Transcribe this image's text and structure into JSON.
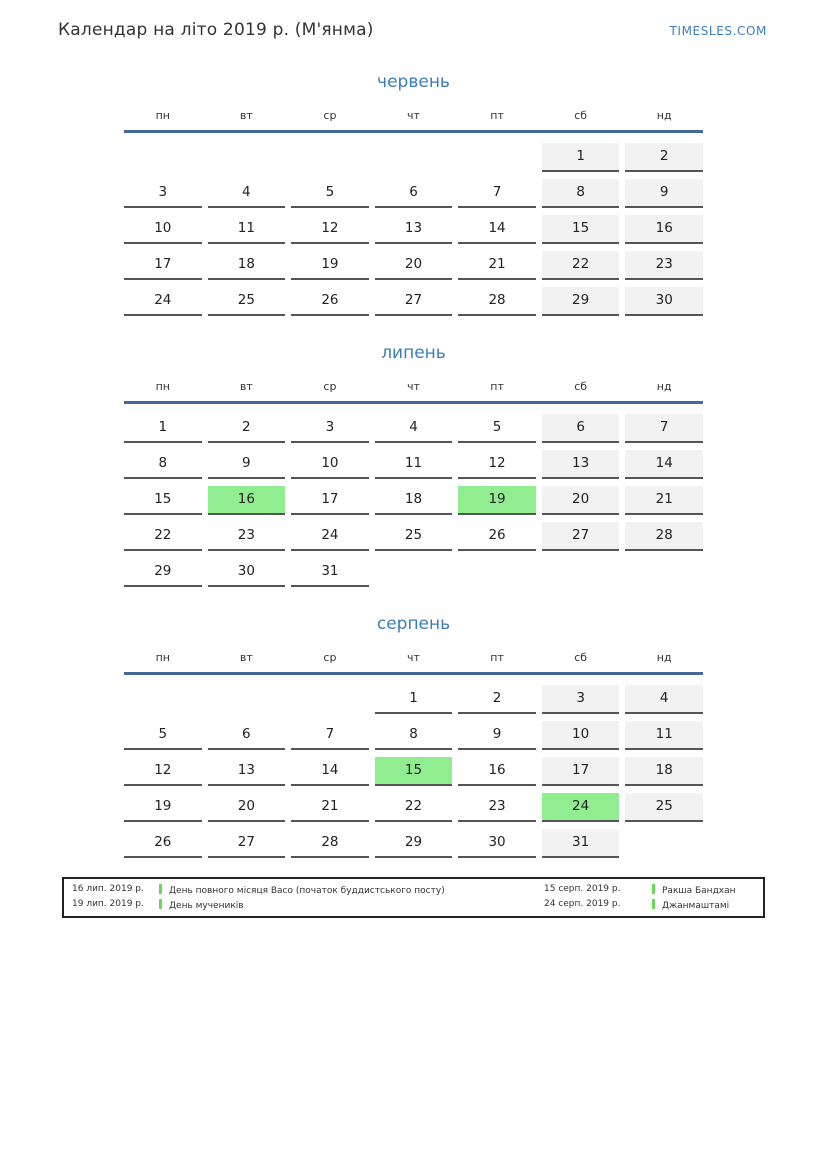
{
  "page": {
    "title": "Календар на літо 2019 р. (М'янма)",
    "site": "TIMESLES.COM"
  },
  "weekdays": [
    "пн",
    "вт",
    "ср",
    "чт",
    "пт",
    "сб",
    "нд"
  ],
  "months": [
    {
      "name": "червень",
      "highlighted": [],
      "weeks": [
        [
          "",
          "",
          "",
          "",
          "",
          "1",
          "2"
        ],
        [
          "3",
          "4",
          "5",
          "6",
          "7",
          "8",
          "9"
        ],
        [
          "10",
          "11",
          "12",
          "13",
          "14",
          "15",
          "16"
        ],
        [
          "17",
          "18",
          "19",
          "20",
          "21",
          "22",
          "23"
        ],
        [
          "24",
          "25",
          "26",
          "27",
          "28",
          "29",
          "30"
        ]
      ]
    },
    {
      "name": "липень",
      "highlighted": [
        16,
        19
      ],
      "weeks": [
        [
          "1",
          "2",
          "3",
          "4",
          "5",
          "6",
          "7"
        ],
        [
          "8",
          "9",
          "10",
          "11",
          "12",
          "13",
          "14"
        ],
        [
          "15",
          "16",
          "17",
          "18",
          "19",
          "20",
          "21"
        ],
        [
          "22",
          "23",
          "24",
          "25",
          "26",
          "27",
          "28"
        ],
        [
          "29",
          "30",
          "31",
          "",
          "",
          "",
          ""
        ]
      ]
    },
    {
      "name": "серпень",
      "highlighted": [
        15,
        24
      ],
      "weeks": [
        [
          "",
          "",
          "",
          "1",
          "2",
          "3",
          "4"
        ],
        [
          "5",
          "6",
          "7",
          "8",
          "9",
          "10",
          "11"
        ],
        [
          "12",
          "13",
          "14",
          "15",
          "16",
          "17",
          "18"
        ],
        [
          "19",
          "20",
          "21",
          "22",
          "23",
          "24",
          "25"
        ],
        [
          "26",
          "27",
          "28",
          "29",
          "30",
          "31",
          ""
        ]
      ]
    }
  ],
  "legend": {
    "columns": [
      [
        {
          "date": "16 лип. 2019 р.",
          "name": "День повного місяця Васо (початок буддистського посту)"
        },
        {
          "date": "19 лип. 2019 р.",
          "name": "День мучеників"
        }
      ],
      [
        {
          "date": "15 серп. 2019 р.",
          "name": "Ракша Бандхан"
        },
        {
          "date": "24 серп. 2019 р.",
          "name": "Джанмаштамі"
        }
      ]
    ]
  },
  "colors": {
    "accent_blue": "#3c7cbe",
    "header_rule_blue": "#44689b",
    "weekend_background": "#f2f2f2",
    "holiday_background": "#90ee90",
    "cell_underline": "#555555",
    "legend_bar_green": "#66dd55"
  }
}
